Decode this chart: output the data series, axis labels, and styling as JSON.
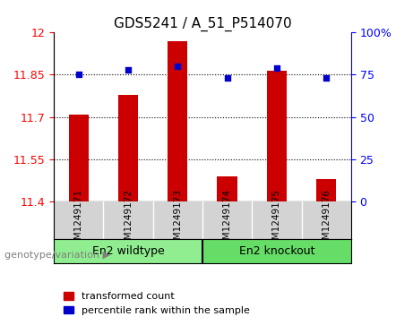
{
  "title": "GDS5241 / A_51_P514070",
  "samples": [
    "GSM1249171",
    "GSM1249172",
    "GSM1249173",
    "GSM1249174",
    "GSM1249175",
    "GSM1249176"
  ],
  "bar_values": [
    11.71,
    11.78,
    11.97,
    11.49,
    11.865,
    11.48
  ],
  "percentile_values": [
    75,
    78,
    80,
    73,
    79,
    73
  ],
  "ylim_left": [
    11.4,
    12.0
  ],
  "ylim_right": [
    0,
    100
  ],
  "yticks_left": [
    11.4,
    11.55,
    11.7,
    11.85,
    12.0
  ],
  "yticks_right": [
    0,
    25,
    50,
    75,
    100
  ],
  "ytick_labels_left": [
    "11.4",
    "11.55",
    "11.7",
    "11.85",
    "12"
  ],
  "ytick_labels_right": [
    "0",
    "25",
    "50",
    "75",
    "100%"
  ],
  "hlines": [
    11.55,
    11.7,
    11.85
  ],
  "bar_color": "#cc0000",
  "dot_color": "#0000cc",
  "bar_width": 0.4,
  "group1_label": "En2 wildtype",
  "group2_label": "En2 knockout",
  "group1_color": "#90ee90",
  "group2_color": "#66dd66",
  "group_label_prefix": "genotype/variation",
  "legend_bar_label": "transformed count",
  "legend_dot_label": "percentile rank within the sample",
  "background_color": "#ffffff",
  "plot_bg_color": "#ffffff",
  "gray_bg_color": "#d3d3d3",
  "title_fontsize": 11,
  "axis_fontsize": 9,
  "tick_fontsize": 9
}
